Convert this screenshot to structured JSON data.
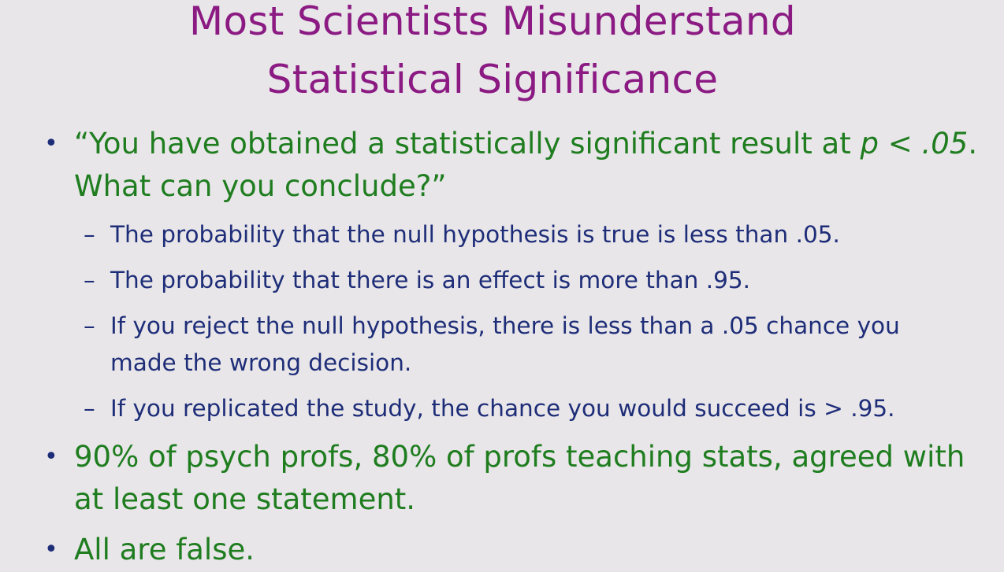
{
  "title": {
    "line1": "Most Scientists Misunderstand",
    "line2": "Statistical Significance"
  },
  "bullet1": {
    "text_a": "“You have obtained a statistically significant result at ",
    "p_symbol": "p",
    "text_b": " < .05",
    "text_c": ".",
    "text_d": "What can you conclude?”"
  },
  "sub_bullets": [
    {
      "dash": "–",
      "text": "The probability that the null hypothesis is true is less than .05."
    },
    {
      "dash": "–",
      "text": "The probability that there is an effect is more than .95."
    },
    {
      "dash": "–",
      "text": "If you reject the null hypothesis, there is less than a .05 chance you",
      "text2": "made the wrong decision."
    },
    {
      "dash": "–",
      "text": "If you replicated the study, the chance you would succeed is > .95."
    }
  ],
  "bullet2": {
    "line1": "90% of psych profs, 80% of profs teaching stats, agreed with",
    "line2": "at least one statement."
  },
  "bullet3": {
    "text": "All are false."
  },
  "bullet_glyph": "•"
}
